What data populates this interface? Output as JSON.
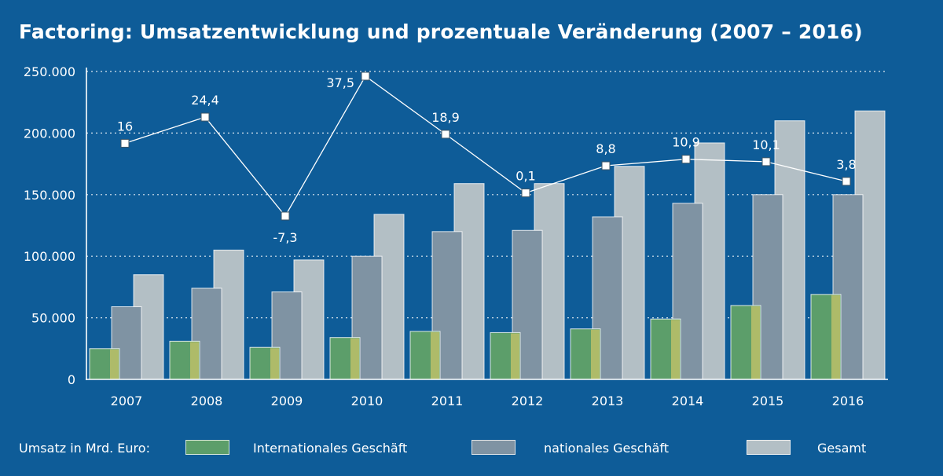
{
  "title": "Factoring: Umsatzentwicklung und prozentuale Veränderung (2007 – 2016)",
  "legend": {
    "prefix": "Umsatz in Mrd. Euro:",
    "international": "Internationales Geschäft",
    "national": "nationales Geschäft",
    "gesamt": "Gesamt"
  },
  "colors": {
    "background": "#0e5c98",
    "international": "#5c9e6a",
    "international_edge": "#bcbf68",
    "national": "#7f93a3",
    "gesamt": "#b3bfc5",
    "line": "#ffffff"
  },
  "chart_data": {
    "type": "bar",
    "title": "Factoring: Umsatzentwicklung und prozentuale Veränderung (2007 – 2016)",
    "categories": [
      "2007",
      "2008",
      "2009",
      "2010",
      "2011",
      "2012",
      "2013",
      "2014",
      "2015",
      "2016"
    ],
    "series": [
      {
        "name": "Internationales Geschäft",
        "values": [
          25000,
          31000,
          26000,
          34000,
          39000,
          38000,
          41000,
          49000,
          60000,
          69000
        ]
      },
      {
        "name": "nationales Geschäft",
        "values": [
          59000,
          74000,
          71000,
          100000,
          120000,
          121000,
          132000,
          143000,
          150000,
          150000
        ]
      },
      {
        "name": "Gesamt",
        "values": [
          85000,
          105000,
          97000,
          134000,
          159000,
          159000,
          173000,
          192000,
          210000,
          218000
        ]
      }
    ],
    "line": {
      "name": "prozentuale Veränderung",
      "labels": [
        "16",
        "24,4",
        "-7,3",
        "37,5",
        "18,9",
        "0,1",
        "8,8",
        "10,9",
        "10,1",
        "3,8"
      ],
      "values": [
        16,
        24.4,
        -7.3,
        37.5,
        18.9,
        0.1,
        8.8,
        10.9,
        10.1,
        3.8
      ],
      "label_position": [
        "above",
        "above",
        "below",
        "left",
        "above",
        "above",
        "above",
        "above",
        "above",
        "above"
      ]
    },
    "yticks": [
      "0",
      "50.000",
      "100.000",
      "150.000",
      "200.000",
      "250.000"
    ],
    "ylim": [
      0,
      250000
    ],
    "ylabel": "Umsatz in Mrd. Euro",
    "grid": true
  }
}
